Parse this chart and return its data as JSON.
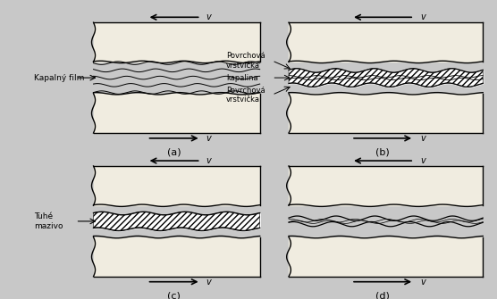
{
  "bg_color": "#c8c8c8",
  "fig_bg": "#c8c8c8",
  "line_color": "#000000",
  "panel_labels": [
    "(a)",
    "(b)",
    "(c)",
    "(d)"
  ],
  "block_fill": "#f0ece0",
  "label_a": "Kapalný film",
  "label_c": "Tuhé\nmazivo",
  "label_b_top": "Povrchová\nvrstvička",
  "label_b_mid": "kapalina",
  "label_b_bot": "Povrchová\nvrstvička",
  "v_label": "v"
}
